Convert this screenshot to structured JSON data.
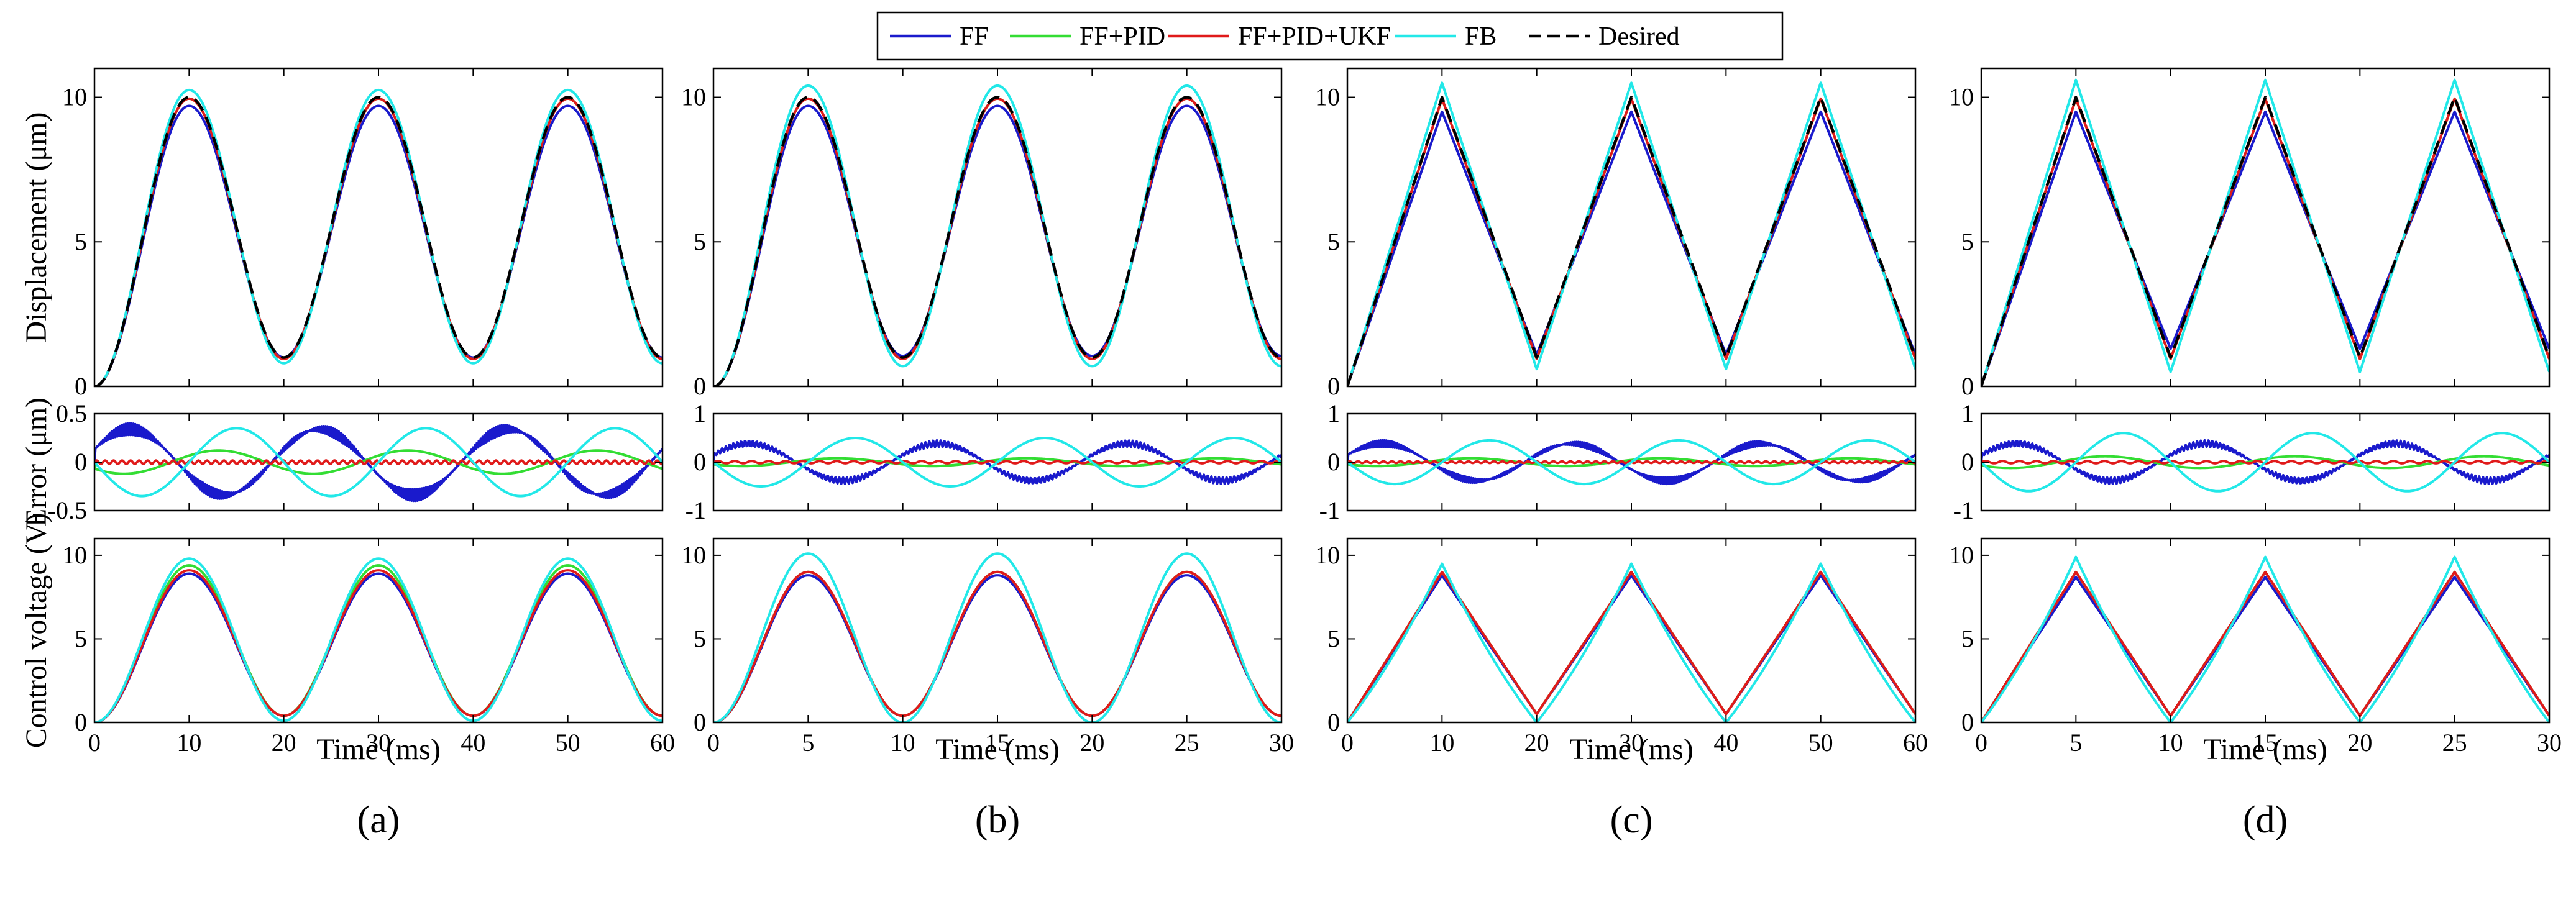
{
  "figure": {
    "legend": [
      {
        "name": "FF",
        "color": "#1a1acc",
        "dash": false
      },
      {
        "name": "FF+PID",
        "color": "#33dd33",
        "dash": false
      },
      {
        "name": "FF+PID+UKF",
        "color": "#e01a1a",
        "dash": false
      },
      {
        "name": "FB",
        "color": "#22e8e8",
        "dash": false
      },
      {
        "name": "Desired",
        "color": "#000000",
        "dash": true
      }
    ],
    "row_ylabels": [
      "Displacement (μm)",
      "Error (μm)",
      "Control voltage (V)"
    ],
    "xlabel": "Time (ms)"
  },
  "chart_data": [
    {
      "panel": "(a)",
      "waveform": "sinusoidal",
      "period_ms": 20,
      "xlim": [
        0,
        60
      ],
      "xticks": [
        "0",
        "10",
        "20",
        "30",
        "40",
        "50",
        "60"
      ],
      "subplots": [
        {
          "type": "line",
          "ylabel": "Displacement (μm)",
          "ylim": [
            0,
            11
          ],
          "yticks": [
            "0",
            "5",
            "10"
          ],
          "series": [
            {
              "name": "FF",
              "min": 1.0,
              "max": 9.7
            },
            {
              "name": "FF+PID",
              "min": 0.95,
              "max": 9.95
            },
            {
              "name": "FF+PID+UKF",
              "min": 0.95,
              "max": 9.95
            },
            {
              "name": "FB",
              "min": 0.8,
              "max": 10.25
            },
            {
              "name": "Desired",
              "min": 1.0,
              "max": 10.0
            }
          ]
        },
        {
          "type": "line",
          "ylabel": "Error (μm)",
          "ylim": [
            -0.5,
            0.5
          ],
          "yticks": [
            "0.5",
            "0",
            "-0.5"
          ],
          "series": [
            {
              "name": "FF",
              "amplitude": 0.4
            },
            {
              "name": "FF+PID",
              "amplitude": 0.12
            },
            {
              "name": "FF+PID+UKF",
              "amplitude": 0.03
            },
            {
              "name": "FB",
              "amplitude": 0.35
            }
          ]
        },
        {
          "type": "line",
          "ylabel": "Control voltage (V)",
          "ylim": [
            0,
            11
          ],
          "yticks": [
            "0",
            "5",
            "10"
          ],
          "series": [
            {
              "name": "FF",
              "min": 0.4,
              "max": 8.9
            },
            {
              "name": "FF+PID",
              "min": 0.4,
              "max": 9.4
            },
            {
              "name": "FF+PID+UKF",
              "min": 0.4,
              "max": 9.1
            },
            {
              "name": "FB",
              "min": 0.1,
              "max": 9.8
            }
          ]
        }
      ]
    },
    {
      "panel": "(b)",
      "waveform": "sinusoidal",
      "period_ms": 10,
      "xlim": [
        0,
        30
      ],
      "xticks": [
        "0",
        "5",
        "10",
        "15",
        "20",
        "25",
        "30"
      ],
      "subplots": [
        {
          "type": "line",
          "ylabel": "Displacement (μm)",
          "ylim": [
            0,
            11
          ],
          "yticks": [
            "0",
            "5",
            "10"
          ],
          "series": [
            {
              "name": "FF",
              "min": 1.05,
              "max": 9.7
            },
            {
              "name": "FF+PID",
              "min": 0.95,
              "max": 9.95
            },
            {
              "name": "FF+PID+UKF",
              "min": 0.95,
              "max": 9.95
            },
            {
              "name": "FB",
              "min": 0.7,
              "max": 10.4
            },
            {
              "name": "Desired",
              "min": 1.0,
              "max": 10.0
            }
          ]
        },
        {
          "type": "line",
          "ylabel": "Error (μm)",
          "ylim": [
            -1,
            1
          ],
          "yticks": [
            "1",
            "0",
            "-1"
          ],
          "series": [
            {
              "name": "FF",
              "amplitude": 0.45
            },
            {
              "name": "FF+PID",
              "amplitude": 0.08
            },
            {
              "name": "FF+PID+UKF",
              "amplitude": 0.04
            },
            {
              "name": "FB",
              "amplitude": 0.5
            }
          ]
        },
        {
          "type": "line",
          "ylabel": "Control voltage (V)",
          "ylim": [
            0,
            11
          ],
          "yticks": [
            "0",
            "5",
            "10"
          ],
          "series": [
            {
              "name": "FF",
              "min": 0.4,
              "max": 8.8
            },
            {
              "name": "FF+PID",
              "min": 0.4,
              "max": 9.0
            },
            {
              "name": "FF+PID+UKF",
              "min": 0.4,
              "max": 9.0
            },
            {
              "name": "FB",
              "min": 0.0,
              "max": 10.1
            }
          ]
        }
      ]
    },
    {
      "panel": "(c)",
      "waveform": "triangular",
      "period_ms": 20,
      "xlim": [
        0,
        60
      ],
      "xticks": [
        "0",
        "10",
        "20",
        "30",
        "40",
        "50",
        "60"
      ],
      "subplots": [
        {
          "type": "line",
          "ylabel": "Displacement (μm)",
          "ylim": [
            0,
            11
          ],
          "yticks": [
            "0",
            "5",
            "10"
          ],
          "series": [
            {
              "name": "FF",
              "min": 1.1,
              "max": 9.5
            },
            {
              "name": "FF+PID",
              "min": 0.95,
              "max": 9.95
            },
            {
              "name": "FF+PID+UKF",
              "min": 0.95,
              "max": 9.95
            },
            {
              "name": "FB",
              "min": 0.6,
              "max": 10.5
            },
            {
              "name": "Desired",
              "min": 1.0,
              "max": 10.0
            }
          ]
        },
        {
          "type": "line",
          "ylabel": "Error (μm)",
          "ylim": [
            -1,
            1
          ],
          "yticks": [
            "1",
            "0",
            "-1"
          ],
          "series": [
            {
              "name": "FF",
              "amplitude": 0.45
            },
            {
              "name": "FF+PID",
              "amplitude": 0.08
            },
            {
              "name": "FF+PID+UKF",
              "amplitude": 0.03
            },
            {
              "name": "FB",
              "amplitude": 0.45
            }
          ]
        },
        {
          "type": "line",
          "ylabel": "Control voltage (V)",
          "ylim": [
            0,
            11
          ],
          "yticks": [
            "0",
            "5",
            "10"
          ],
          "series": [
            {
              "name": "FF",
              "min": 0.5,
              "max": 8.8
            },
            {
              "name": "FF+PID",
              "min": 0.5,
              "max": 9.0
            },
            {
              "name": "FF+PID+UKF",
              "min": 0.5,
              "max": 9.0
            },
            {
              "name": "FB",
              "min": 0.0,
              "max": 9.5
            }
          ]
        }
      ]
    },
    {
      "panel": "(d)",
      "waveform": "triangular",
      "period_ms": 10,
      "xlim": [
        0,
        30
      ],
      "xticks": [
        "0",
        "5",
        "10",
        "15",
        "20",
        "25",
        "30"
      ],
      "subplots": [
        {
          "type": "line",
          "ylabel": "Displacement (μm)",
          "ylim": [
            0,
            11
          ],
          "yticks": [
            "0",
            "5",
            "10"
          ],
          "series": [
            {
              "name": "FF",
              "min": 1.3,
              "max": 9.5
            },
            {
              "name": "FF+PID",
              "min": 0.95,
              "max": 9.95
            },
            {
              "name": "FF+PID+UKF",
              "min": 0.95,
              "max": 9.95
            },
            {
              "name": "FB",
              "min": 0.5,
              "max": 10.6
            },
            {
              "name": "Desired",
              "min": 1.0,
              "max": 10.0
            }
          ]
        },
        {
          "type": "line",
          "ylabel": "Error (μm)",
          "ylim": [
            -1,
            1
          ],
          "yticks": [
            "1",
            "0",
            "-1"
          ],
          "series": [
            {
              "name": "FF",
              "amplitude": 0.45
            },
            {
              "name": "FF+PID",
              "amplitude": 0.12
            },
            {
              "name": "FF+PID+UKF",
              "amplitude": 0.04
            },
            {
              "name": "FB",
              "amplitude": 0.6
            }
          ]
        },
        {
          "type": "line",
          "ylabel": "Control voltage (V)",
          "ylim": [
            0,
            11
          ],
          "yticks": [
            "0",
            "5",
            "10"
          ],
          "series": [
            {
              "name": "FF",
              "min": 0.4,
              "max": 8.7
            },
            {
              "name": "FF+PID",
              "min": 0.4,
              "max": 9.0
            },
            {
              "name": "FF+PID+UKF",
              "min": 0.4,
              "max": 9.0
            },
            {
              "name": "FB",
              "min": 0.0,
              "max": 9.9
            }
          ]
        }
      ]
    }
  ]
}
